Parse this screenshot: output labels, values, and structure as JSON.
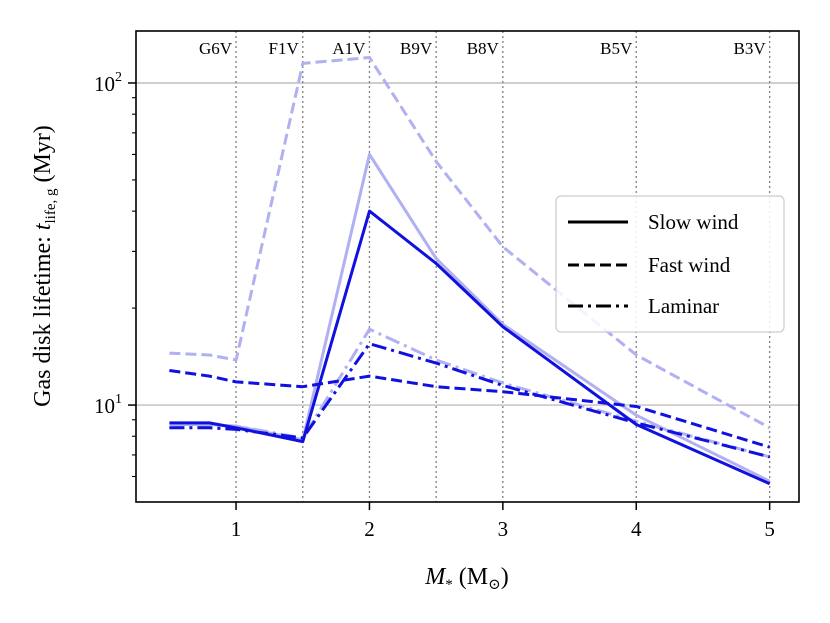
{
  "chart_data": {
    "type": "line",
    "title": "",
    "xlabel": {
      "main": "M",
      "sub": "*",
      "unit_open": " (M",
      "unit_sub": "⊙",
      "unit_close": ")"
    },
    "ylabel": {
      "prefix": "Gas disk lifetime: ",
      "var": "t",
      "sub": "life, g",
      "suffix": " (Myr)"
    },
    "xlim": [
      0.25,
      5.22
    ],
    "ylim": [
      5.0,
      145.0
    ],
    "yscale": "log",
    "x_ticks": [
      {
        "value": 1,
        "label": "1"
      },
      {
        "value": 2,
        "label": "2"
      },
      {
        "value": 3,
        "label": "3"
      },
      {
        "value": 4,
        "label": "4"
      },
      {
        "value": 5,
        "label": "5"
      }
    ],
    "y_major_ticks": [
      {
        "value": 10,
        "base": "10",
        "exp": "1"
      },
      {
        "value": 100,
        "base": "10",
        "exp": "2"
      }
    ],
    "y_minor_ticks": [
      6,
      7,
      8,
      9,
      20,
      30,
      40,
      50,
      60,
      70,
      80,
      90
    ],
    "gridlines_y": [
      10,
      100
    ],
    "spectral_types": [
      {
        "label": "G6V",
        "mass": 1.0
      },
      {
        "label": "F1V",
        "mass": 1.5
      },
      {
        "label": "A1V",
        "mass": 2.0
      },
      {
        "label": "B9V",
        "mass": 2.5
      },
      {
        "label": "B8V",
        "mass": 3.0
      },
      {
        "label": "B5V",
        "mass": 4.0
      },
      {
        "label": "B3V",
        "mass": 5.0
      }
    ],
    "series": [
      {
        "name": "Slow wind (light)",
        "style": "solid",
        "color": "#b0b0f2",
        "x": [
          0.5,
          0.8,
          1.0,
          1.5,
          2.0,
          2.5,
          3.0,
          4.0,
          5.0
        ],
        "y": [
          8.7,
          8.7,
          8.6,
          7.8,
          60.0,
          28.5,
          17.8,
          9.3,
          5.8
        ]
      },
      {
        "name": "Fast wind (light)",
        "style": "dashed",
        "color": "#b0b0f2",
        "x": [
          0.5,
          0.8,
          1.0,
          1.5,
          2.0,
          2.5,
          3.0,
          4.0,
          5.0
        ],
        "y": [
          14.5,
          14.3,
          13.8,
          115.0,
          120.0,
          57.0,
          31.0,
          14.3,
          8.5
        ]
      },
      {
        "name": "Laminar (light)",
        "style": "dashdot",
        "color": "#b0b0f2",
        "x": [
          0.5,
          0.8,
          1.0,
          1.5,
          2.0,
          2.5,
          3.0,
          4.0,
          5.0
        ],
        "y": [
          8.5,
          8.6,
          8.6,
          7.9,
          17.2,
          13.8,
          11.7,
          8.9,
          6.9
        ]
      },
      {
        "name": "Slow wind",
        "style": "solid",
        "color": "#1010e0",
        "x": [
          0.5,
          0.8,
          1.0,
          1.5,
          2.0,
          2.5,
          3.0,
          4.0,
          5.0
        ],
        "y": [
          8.8,
          8.8,
          8.5,
          7.7,
          40.0,
          27.5,
          17.5,
          8.7,
          5.7
        ]
      },
      {
        "name": "Fast wind",
        "style": "dashed",
        "color": "#1010e0",
        "x": [
          0.5,
          0.8,
          1.0,
          1.5,
          2.0,
          2.5,
          3.0,
          4.0,
          5.0
        ],
        "y": [
          12.8,
          12.3,
          11.8,
          11.4,
          12.3,
          11.4,
          11.0,
          9.9,
          7.4
        ]
      },
      {
        "name": "Laminar",
        "style": "dashdot",
        "color": "#1010e0",
        "x": [
          0.5,
          0.8,
          1.0,
          1.5,
          2.0,
          2.5,
          3.0,
          4.0,
          5.0
        ],
        "y": [
          8.5,
          8.5,
          8.4,
          7.9,
          15.5,
          13.5,
          11.5,
          8.8,
          6.9
        ]
      }
    ],
    "legend": {
      "position": "center-right",
      "entries": [
        {
          "label": "Slow wind",
          "style": "solid"
        },
        {
          "label": "Fast wind",
          "style": "dashed"
        },
        {
          "label": "Laminar",
          "style": "dashdot"
        }
      ]
    }
  }
}
